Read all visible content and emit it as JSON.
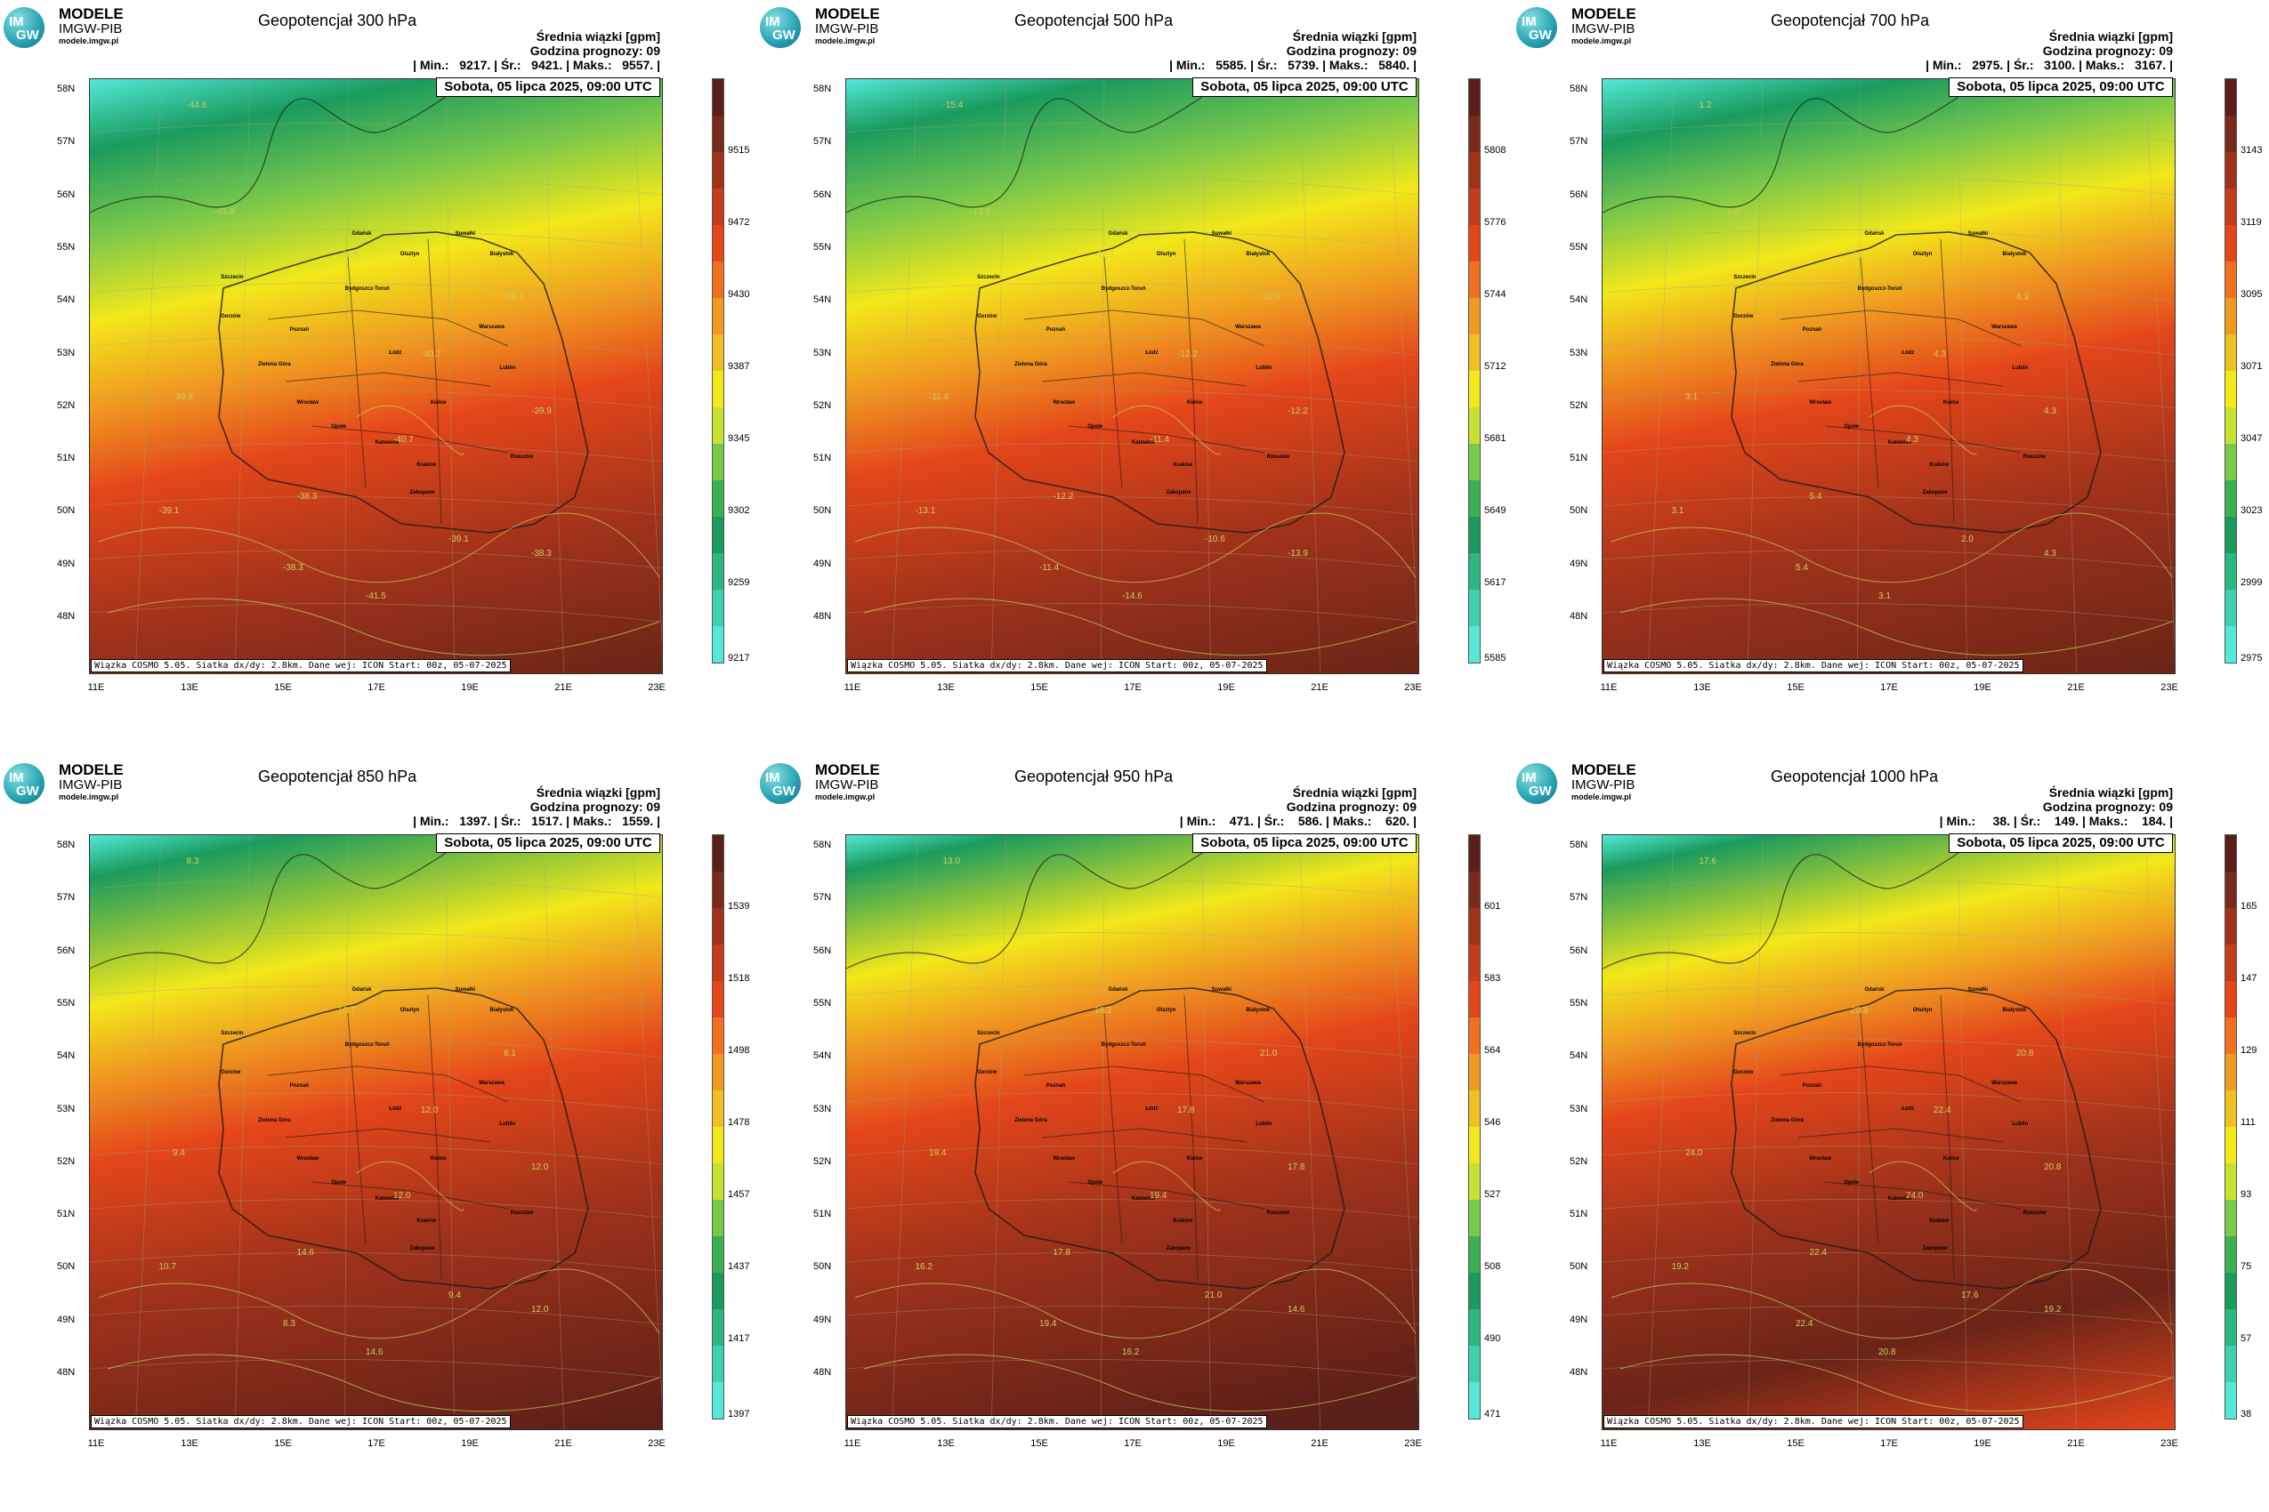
{
  "logo": {
    "badge_top": "IM",
    "badge_bottom": "GW",
    "line1": "MODELE",
    "line2": "IMGW-PIB",
    "line3": "modele.imgw.pl"
  },
  "common": {
    "variable": "Średnia wiązki [gpm]",
    "forecast_hour": "Godzina prognozy: 09",
    "date": "Sobota, 05 lipca 2025, 09:00 UTC",
    "footer": "Wiązka COSMO 5.05. Siatka dx/dy: 2.8km. Dane wej: ICON Start: 00z, 05-07-2025",
    "lat_labels": [
      "58N",
      "57N",
      "56N",
      "55N",
      "54N",
      "53N",
      "52N",
      "51N",
      "50N",
      "49N",
      "48N"
    ],
    "lon_labels": [
      "11E",
      "13E",
      "15E",
      "17E",
      "19E",
      "21E",
      "23E"
    ],
    "cities": [
      "Gdańsk",
      "Olsztyn",
      "Suwałki",
      "Szczecin",
      "Białystok",
      "Bydgoszcz-Toruń",
      "Gorzów",
      "Poznań",
      "Warszawa",
      "Zielona Góra",
      "Łódź",
      "Lublin",
      "Wrocław",
      "Kielce",
      "Opole",
      "Katowice",
      "Kraków",
      "Rzeszów",
      "Zakopane"
    ]
  },
  "panels": [
    {
      "title": "Geopotencjał 300 hPa",
      "stats": "| Min.:   9217. | Śr.:   9421. | Maks.:   9557. |",
      "colorbar": [
        "9515",
        "9472",
        "9430",
        "9387",
        "9345",
        "9302",
        "9259",
        "9217"
      ],
      "palette": "p300",
      "contours": [
        "-44.6",
        "-43.9",
        "-41.5",
        "-40.7",
        "-39.9",
        "-39.1",
        "-38.3",
        "-40.7",
        "-39.1",
        "-39.9",
        "-38.3",
        "-39.1",
        "-38.3",
        "-41.5"
      ]
    },
    {
      "title": "Geopotencjał 500 hPa",
      "stats": "| Min.:   5585. | Śr.:   5739. | Maks.:   5840. |",
      "colorbar": [
        "5808",
        "5776",
        "5744",
        "5712",
        "5681",
        "5649",
        "5617",
        "5585"
      ],
      "palette": "p500",
      "contours": [
        "-15.4",
        "-13.9",
        "-13.1",
        "-12.2",
        "-11.4",
        "-10.6",
        "-12.2",
        "-11.4",
        "-13.1",
        "-12.2",
        "-11.4",
        "-10.6",
        "-13.9",
        "-14.6"
      ]
    },
    {
      "title": "Geopotencjał 700 hPa",
      "stats": "| Min.:   2975. | Śr.:   3100. | Maks.:   3167. |",
      "colorbar": [
        "3143",
        "3119",
        "3095",
        "3071",
        "3047",
        "3023",
        "2999",
        "2975"
      ],
      "palette": "p700",
      "contours": [
        "1.2",
        "2.0",
        "3.1",
        "4.3",
        "3.1",
        "4.3",
        "5.4",
        "4.3",
        "3.1",
        "4.3",
        "5.4",
        "2.0",
        "4.3",
        "3.1"
      ]
    },
    {
      "title": "Geopotencjał 850 hPa",
      "stats": "| Min.:   1397. | Śr.:   1517. | Maks.:   1559. |",
      "colorbar": [
        "1539",
        "1518",
        "1498",
        "1478",
        "1457",
        "1437",
        "1417",
        "1397"
      ],
      "palette": "p850",
      "contours": [
        "8.3",
        "9.4",
        "10.7",
        "12.0",
        "9.4",
        "8.1",
        "14.6",
        "12.0",
        "10.7",
        "12.0",
        "8.3",
        "9.4",
        "12.0",
        "14.6"
      ]
    },
    {
      "title": "Geopotencjał 950 hPa",
      "stats": "| Min.:    471. | Śr.:    586. | Maks.:    620. |",
      "colorbar": [
        "601",
        "583",
        "564",
        "546",
        "527",
        "508",
        "490",
        "471"
      ],
      "palette": "p950",
      "contours": [
        "13.0",
        "14.6",
        "16.2",
        "17.8",
        "19.4",
        "21.0",
        "17.8",
        "19.4",
        "16.2",
        "17.8",
        "19.4",
        "21.0",
        "14.6",
        "16.2"
      ]
    },
    {
      "title": "Geopotencjał 1000 hPa",
      "stats": "| Min.:     38. | Śr.:    149. | Maks.:    184. |",
      "colorbar": [
        "165",
        "147",
        "129",
        "111",
        "93",
        "75",
        "57",
        "38"
      ],
      "palette": "p1000",
      "contours": [
        "17.6",
        "19.2",
        "20.8",
        "22.4",
        "24.0",
        "20.8",
        "22.4",
        "24.0",
        "19.2",
        "20.8",
        "22.4",
        "17.6",
        "19.2",
        "20.8"
      ]
    }
  ],
  "palettes": {
    "top": "#53e8d8",
    "green": "#1a9b5e",
    "lgreen": "#78c84a",
    "yellow": "#f2e81a",
    "orange": "#f09a20",
    "red": "#e4461a",
    "dred": "#a0321a",
    "brown": "#5a1f18"
  }
}
